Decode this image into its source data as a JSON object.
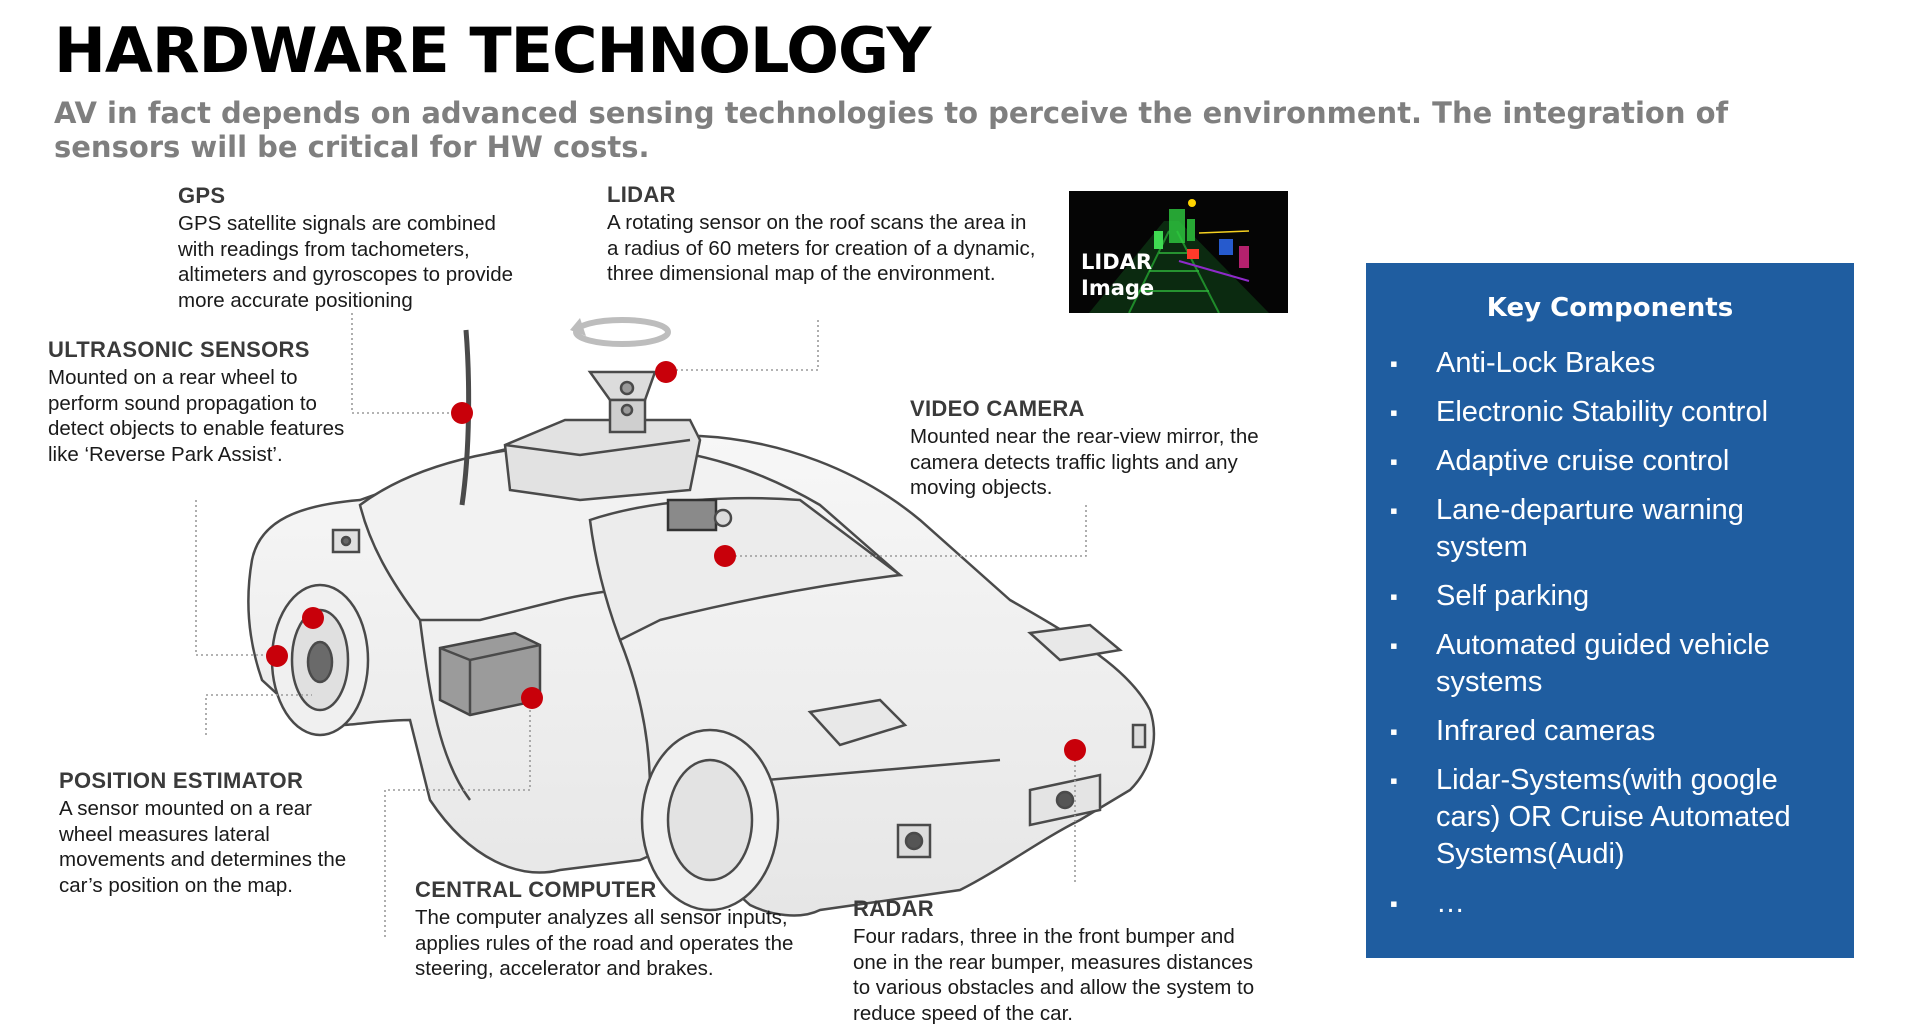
{
  "title": "HARDWARE TECHNOLOGY",
  "subtitle": "AV in fact depends on advanced sensing technologies to perceive the environment. The integration of sensors will be critical for HW costs.",
  "sensors": {
    "gps": {
      "head": "GPS",
      "body": "GPS satellite signals are combined with readings from tachometers, altimeters and gyroscopes to provide more accurate positioning"
    },
    "lidar": {
      "head": "LIDAR",
      "body": "A rotating sensor on the roof scans the area in a radius of 60 meters for creation of a dynamic, three dimensional map of the environment."
    },
    "ultrasonic": {
      "head": "ULTRASONIC SENSORS",
      "body": "Mounted on a rear wheel to perform sound propagation to detect objects to enable features like ‘Reverse Park Assist’."
    },
    "video": {
      "head": "VIDEO CAMERA",
      "body": "Mounted near the rear-view mirror, the camera detects traffic lights and any moving objects."
    },
    "position": {
      "head": "POSITION ESTIMATOR",
      "body": "A sensor mounted on a rear wheel measures lateral movements and determines the car’s position on the map."
    },
    "computer": {
      "head": "CENTRAL COMPUTER",
      "body": "The computer analyzes all sensor inputs, applies rules of the road and operates the steering, accelerator and brakes."
    },
    "radar": {
      "head": "RADAR",
      "body": "Four radars, three in the front bumper and one in the rear bumper, measures distances to various obstacles and allow the system to reduce speed of the car."
    }
  },
  "lidar_image_caption": "LIDAR Image",
  "key_components": {
    "title": "Key Components",
    "bullet": "▪",
    "items": [
      "Anti-Lock Brakes",
      "Electronic Stability control",
      "Adaptive cruise control",
      "Lane-departure warning system",
      "Self parking",
      "Automated guided vehicle systems",
      "Infrared cameras",
      "Lidar-Systems(with google cars) OR Cruise Automated Systems(Audi)",
      "…"
    ]
  },
  "colors": {
    "marker": "#c8000a",
    "panel": "#1f5da0",
    "subtitle": "#7f7f7f"
  }
}
